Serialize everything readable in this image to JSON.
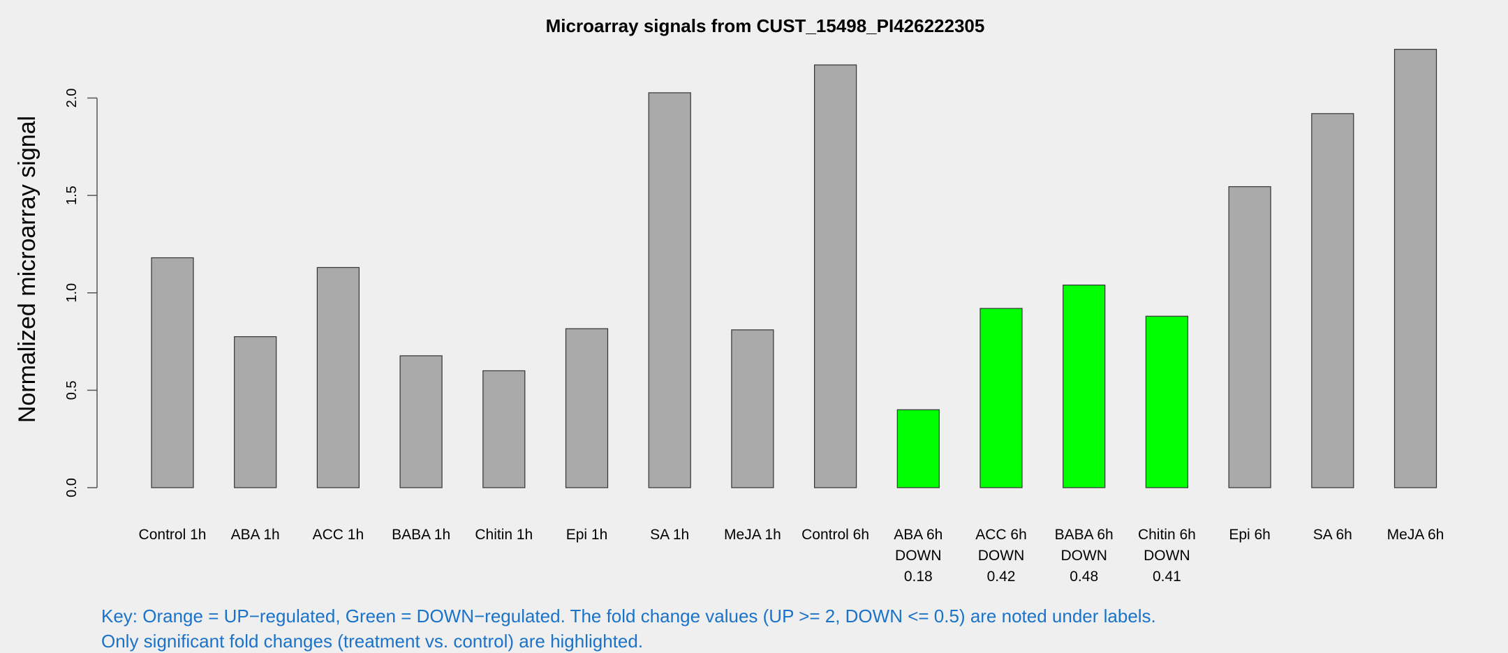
{
  "chart_data": {
    "type": "bar",
    "title": "Microarray signals from CUST_15498_PI426222305",
    "xlabel": "",
    "ylabel": "Normalized microarray signal",
    "ylim": [
      0,
      2.25
    ],
    "yticks": [
      "0.0",
      "0.5",
      "1.0",
      "1.5",
      "2.0"
    ],
    "grid": false,
    "categories": [
      "Control 1h",
      "ABA 1h",
      "ACC 1h",
      "BABA 1h",
      "Chitin 1h",
      "Epi 1h",
      "SA 1h",
      "MeJA 1h",
      "Control 6h",
      "ABA 6h",
      "ACC 6h",
      "BABA 6h",
      "Chitin 6h",
      "Epi 6h",
      "SA 6h",
      "MeJA 6h"
    ],
    "values": [
      1.18,
      0.775,
      1.13,
      0.677,
      0.6,
      0.816,
      2.027,
      0.81,
      2.17,
      0.4,
      0.92,
      1.04,
      0.88,
      1.545,
      1.92,
      2.25
    ],
    "regulation": [
      "",
      "",
      "",
      "",
      "",
      "",
      "",
      "",
      "",
      "DOWN",
      "DOWN",
      "DOWN",
      "DOWN",
      "",
      "",
      ""
    ],
    "fold_change": [
      "",
      "",
      "",
      "",
      "",
      "",
      "",
      "",
      "",
      "0.18",
      "0.42",
      "0.48",
      "0.41",
      "",
      "",
      ""
    ],
    "colors": {
      "default": "#aaaaaa",
      "down": "#00ff00",
      "up": "#ffa500",
      "key_text": "#1a73c8"
    },
    "key_lines": [
      "Key: Orange = UP−regulated, Green = DOWN−regulated. The fold change values (UP >= 2, DOWN <= 0.5) are noted under labels.",
      "Only significant fold changes (treatment vs. control) are highlighted."
    ]
  }
}
